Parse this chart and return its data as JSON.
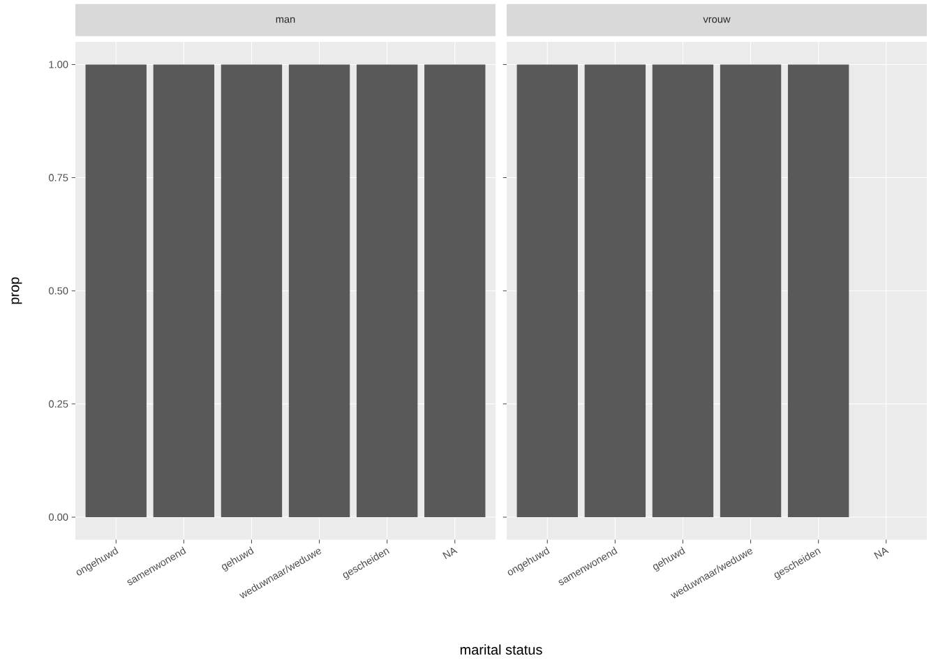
{
  "chart_data": [
    {
      "type": "bar",
      "title": "man",
      "xlabel": "marital status",
      "ylabel": "prop",
      "categories": [
        "ongehuwd",
        "samenwonend",
        "gehuwd",
        "weduwnaar/weduwe",
        "gescheiden",
        "NA"
      ],
      "values": [
        1,
        1,
        1,
        1,
        1,
        1
      ],
      "color": "#595959",
      "ylim": [
        -0.05,
        1.05
      ],
      "yticks": [
        {
          "value": 0,
          "label": "0.00"
        },
        {
          "value": 0.25,
          "label": "0.25"
        },
        {
          "value": 0.5,
          "label": "0.50"
        },
        {
          "value": 0.75,
          "label": "0.75"
        },
        {
          "value": 1,
          "label": "1.00"
        }
      ],
      "grid": true
    },
    {
      "type": "bar",
      "title": "vrouw",
      "categories": [
        "ongehuwd",
        "samenwonend",
        "gehuwd",
        "weduwnaar/weduwe",
        "gescheiden",
        "NA"
      ],
      "values": [
        1,
        1,
        1,
        1,
        1,
        null
      ],
      "color": "#595959",
      "ylim": [
        -0.05,
        1.05
      ],
      "yticks": [
        {
          "value": 0,
          "label": null
        },
        {
          "value": 0.25,
          "label": null
        },
        {
          "value": 0.5,
          "label": null
        },
        {
          "value": 0.75,
          "label": null
        },
        {
          "value": 1,
          "label": null
        }
      ],
      "grid": true,
      "tick_labels": "x"
    }
  ]
}
